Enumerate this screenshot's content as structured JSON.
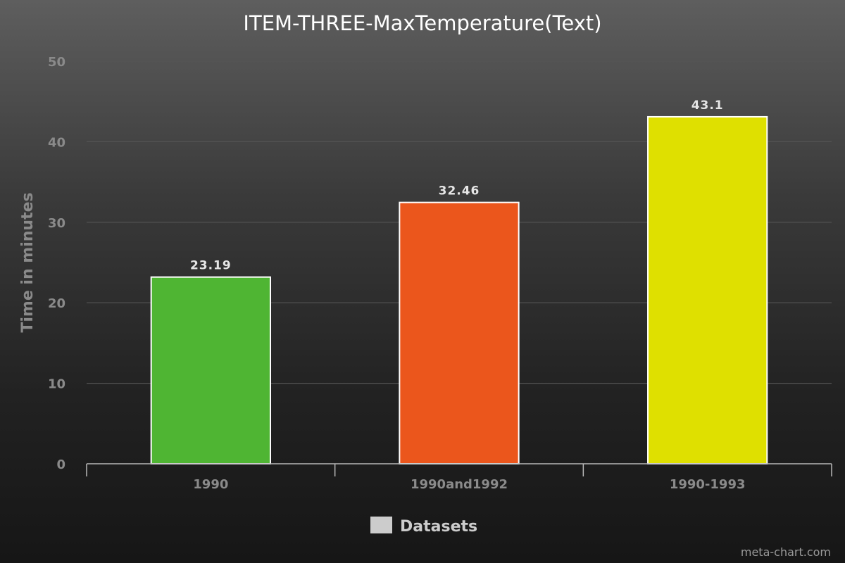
{
  "chart_data": {
    "type": "bar",
    "title": "ITEM-THREE-MaxTemperature(Text)",
    "xlabel": "",
    "ylabel": "Time in minutes",
    "categories": [
      "1990",
      "1990and1992",
      "1990-1993"
    ],
    "values": [
      23.19,
      32.46,
      43.1
    ],
    "value_labels": [
      "23.19",
      "32.46",
      "43.1"
    ],
    "bar_colors": [
      "#4fb533",
      "#eb561c",
      "#dfe000"
    ],
    "bar_outline_color": "#ffffff",
    "ylim": [
      0,
      50
    ],
    "yticks": [
      0,
      10,
      20,
      30,
      40,
      50
    ],
    "grid": true,
    "legend": {
      "placement": "bottom-center",
      "entries": [
        {
          "label": "Datasets",
          "color": "#cccccc"
        }
      ]
    }
  },
  "credit": "meta-chart.com"
}
